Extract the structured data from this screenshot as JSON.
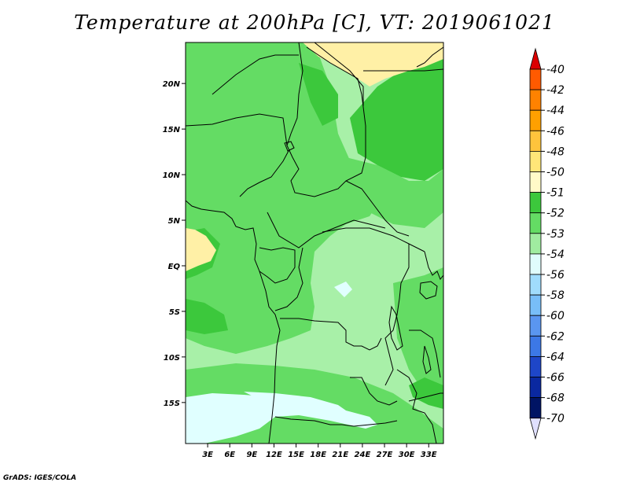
{
  "title": "Temperature at 200hPa [C], VT: 2019061021",
  "credit": "GrADS: IGES/COLA",
  "map": {
    "lat_ticks": [
      {
        "value": 20,
        "label": "20N"
      },
      {
        "value": 15,
        "label": "15N"
      },
      {
        "value": 10,
        "label": "10N"
      },
      {
        "value": 5,
        "label": "5N"
      },
      {
        "value": 0,
        "label": "EQ"
      },
      {
        "value": -5,
        "label": "5S"
      },
      {
        "value": -10,
        "label": "10S"
      },
      {
        "value": -15,
        "label": "15S"
      }
    ],
    "lon_ticks": [
      {
        "value": 3,
        "label": "3E"
      },
      {
        "value": 6,
        "label": "6E"
      },
      {
        "value": 9,
        "label": "9E"
      },
      {
        "value": 12,
        "label": "12E"
      },
      {
        "value": 15,
        "label": "15E"
      },
      {
        "value": 18,
        "label": "18E"
      },
      {
        "value": 21,
        "label": "21E"
      },
      {
        "value": 24,
        "label": "24E"
      },
      {
        "value": 27,
        "label": "27E"
      },
      {
        "value": 30,
        "label": "30E"
      },
      {
        "value": 33,
        "label": "33E"
      }
    ],
    "fill_colors": {
      "m50": "#fff0a6",
      "m51": "#3cc83c",
      "m52": "#64dc64",
      "m53": "#a8f0a8",
      "m54": "#e0ffff"
    }
  },
  "colorbar": {
    "labels": [
      "-40",
      "-42",
      "-44",
      "-46",
      "-48",
      "-50",
      "-51",
      "-52",
      "-53",
      "-54",
      "-56",
      "-58",
      "-60",
      "-62",
      "-64",
      "-66",
      "-68",
      "-70"
    ],
    "colors": [
      "#ff3c00",
      "#ff5a00",
      "#ff8200",
      "#ffa000",
      "#ffc43c",
      "#ffe678",
      "#fffac8",
      "#3cc83c",
      "#64dc64",
      "#a0eca0",
      "#e0fcfc",
      "#a0dcfc",
      "#78bef8",
      "#5a96f0",
      "#3c78e6",
      "#1e46c8",
      "#0a28a0",
      "#001464"
    ],
    "top_arrow_color": "#dc0000",
    "bottom_arrow_color": "#e0e0ff"
  }
}
